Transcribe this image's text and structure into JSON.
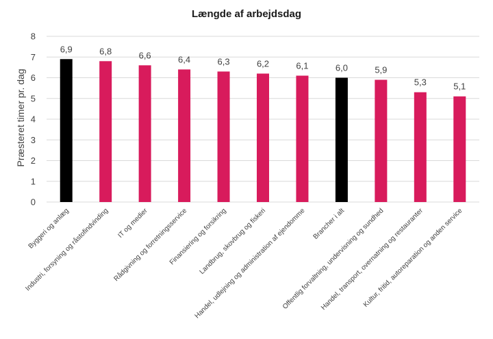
{
  "chart_data": {
    "type": "bar",
    "title": "Længde af arbejdsdag",
    "xlabel": "",
    "ylabel": "Præsteret timer pr. dag",
    "ylim": [
      0,
      8
    ],
    "yticks": [
      0,
      1,
      2,
      3,
      4,
      5,
      6,
      7,
      8
    ],
    "grid": true,
    "categories": [
      "Byggeri og anlæg",
      "Industri, forsyning og råstofindvinding",
      "IT og medier",
      "Rådgivning og forretningsservice",
      "Finansiering og forsikring",
      "Landbrug, skovbrug og fiskeri",
      "Handel, udlejning og administration af ejendomme",
      "Brancher i alt",
      "Offentlig forvaltning, undervisning og sundhed",
      "Handel, transport, overnatning og restauranter",
      "Kultur, fritid, autoreparation og anden service"
    ],
    "values": [
      6.9,
      6.8,
      6.6,
      6.4,
      6.3,
      6.2,
      6.1,
      6.0,
      5.9,
      5.3,
      5.1
    ],
    "value_labels": [
      "6,9",
      "6,8",
      "6,6",
      "6,4",
      "6,3",
      "6,2",
      "6,1",
      "6,0",
      "5,9",
      "5,3",
      "5,1"
    ],
    "bar_colors": [
      "#000000",
      "#d81b5c",
      "#d81b5c",
      "#d81b5c",
      "#d81b5c",
      "#d81b5c",
      "#d81b5c",
      "#000000",
      "#d81b5c",
      "#d81b5c",
      "#d81b5c"
    ],
    "gridline_color": "#d9d9d9"
  }
}
